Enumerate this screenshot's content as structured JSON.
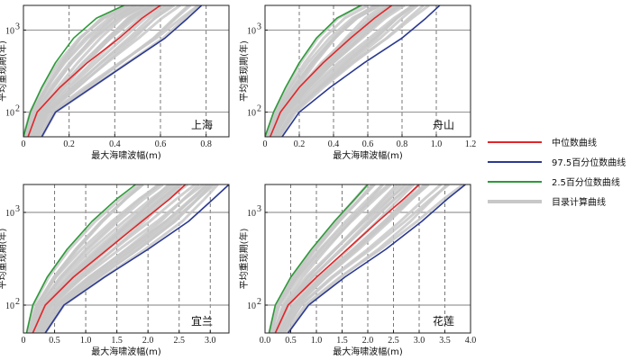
{
  "legend": {
    "items": [
      {
        "label": "中位数曲线",
        "color": "#e0262a"
      },
      {
        "label": "97.5百分位数曲线",
        "color": "#2b3990"
      },
      {
        "label": "2.5百分位数曲线",
        "color": "#2e9a3a"
      },
      {
        "label": "目录计算曲线",
        "color": "#c8c8c8"
      }
    ]
  },
  "chart_data": [
    {
      "type": "line",
      "place_label": "上海",
      "xlabel": "最大海啸波幅(m)",
      "ylabel": "平均重现期(年)",
      "y_scale": "log",
      "xlim": [
        0,
        0.9
      ],
      "ylim": [
        50,
        2000
      ],
      "x_ticks": [
        0,
        0.2,
        0.4,
        0.6,
        0.8
      ],
      "x_tick_labels": [
        "0",
        "0.2",
        "0.4",
        "0.6",
        "0.8"
      ],
      "y_ticks": [
        100,
        1000
      ],
      "y_tick_labels": [
        "10²",
        "10³"
      ],
      "grid": "dashed vertical, solid horizontal",
      "series": [
        {
          "name": "2.5百分位数曲线",
          "color": "#2e9a3a",
          "x": [
            0.0,
            0.03,
            0.08,
            0.14,
            0.22,
            0.32,
            0.44
          ],
          "y": [
            50,
            100,
            200,
            400,
            800,
            1400,
            2000
          ]
        },
        {
          "name": "中位数曲线",
          "color": "#e0262a",
          "x": [
            0.02,
            0.06,
            0.16,
            0.28,
            0.42,
            0.52,
            0.6
          ],
          "y": [
            50,
            100,
            200,
            400,
            800,
            1400,
            2000
          ]
        },
        {
          "name": "97.5百分位数曲线",
          "color": "#2b3990",
          "x": [
            0.08,
            0.14,
            0.3,
            0.46,
            0.62,
            0.72,
            0.78
          ],
          "y": [
            50,
            100,
            200,
            400,
            800,
            1400,
            2000
          ]
        }
      ]
    },
    {
      "type": "line",
      "place_label": "舟山",
      "xlabel": "最大海啸波幅(m)",
      "ylabel": "平均重现期(年)",
      "y_scale": "log",
      "xlim": [
        0,
        1.2
      ],
      "ylim": [
        50,
        2000
      ],
      "x_ticks": [
        0,
        0.2,
        0.4,
        0.6,
        0.8,
        1.0,
        1.2
      ],
      "x_tick_labels": [
        "0",
        "0.2",
        "0.4",
        "0.6",
        "0.8",
        "1.0",
        "1.2"
      ],
      "y_ticks": [
        100,
        1000
      ],
      "y_tick_labels": [
        "10²",
        "10³"
      ],
      "grid": "dashed vertical, solid horizontal",
      "series": [
        {
          "name": "2.5百分位数曲线",
          "color": "#2e9a3a",
          "x": [
            0.0,
            0.05,
            0.12,
            0.2,
            0.3,
            0.42,
            0.56
          ],
          "y": [
            50,
            100,
            200,
            400,
            800,
            1400,
            2000
          ]
        },
        {
          "name": "中位数曲线",
          "color": "#e0262a",
          "x": [
            0.03,
            0.09,
            0.2,
            0.34,
            0.5,
            0.64,
            0.74
          ],
          "y": [
            50,
            100,
            200,
            400,
            800,
            1400,
            2000
          ]
        },
        {
          "name": "97.5百分位数曲线",
          "color": "#2b3990",
          "x": [
            0.1,
            0.2,
            0.38,
            0.58,
            0.8,
            0.94,
            1.02
          ],
          "y": [
            50,
            100,
            200,
            400,
            800,
            1400,
            2000
          ]
        }
      ]
    },
    {
      "type": "line",
      "place_label": "宜兰",
      "xlabel": "最大海啸波幅(m)",
      "ylabel": "平均重现期(年)",
      "y_scale": "log",
      "xlim": [
        0,
        3.3
      ],
      "ylim": [
        50,
        2000
      ],
      "x_ticks": [
        0,
        0.5,
        1.0,
        1.5,
        2.0,
        2.5,
        3.0
      ],
      "x_tick_labels": [
        "0",
        "0.5",
        "1.0",
        "1.5",
        "2.0",
        "2.5",
        "3.0"
      ],
      "y_ticks": [
        100,
        1000
      ],
      "y_tick_labels": [
        "10²",
        "10³"
      ],
      "grid": "dashed vertical, solid horizontal",
      "series": [
        {
          "name": "2.5百分位数曲线",
          "color": "#2e9a3a",
          "x": [
            0.05,
            0.15,
            0.38,
            0.7,
            1.1,
            1.5,
            1.8
          ],
          "y": [
            50,
            100,
            200,
            400,
            800,
            1400,
            2000
          ]
        },
        {
          "name": "中位数曲线",
          "color": "#e0262a",
          "x": [
            0.15,
            0.35,
            0.8,
            1.35,
            1.9,
            2.35,
            2.6
          ],
          "y": [
            50,
            100,
            200,
            400,
            800,
            1400,
            2000
          ]
        },
        {
          "name": "97.5百分位数曲线",
          "color": "#2b3990",
          "x": [
            0.35,
            0.65,
            1.3,
            2.0,
            2.65,
            3.05,
            3.3
          ],
          "y": [
            50,
            100,
            200,
            400,
            800,
            1400,
            2000
          ]
        }
      ]
    },
    {
      "type": "line",
      "place_label": "花莲",
      "xlabel": "最大海啸波幅(m)",
      "ylabel": "平均重现期(年)",
      "y_scale": "log",
      "xlim": [
        0,
        4.0
      ],
      "ylim": [
        50,
        2000
      ],
      "x_ticks": [
        0,
        0.5,
        1.0,
        1.5,
        2.0,
        2.5,
        3.0,
        3.5,
        4.0
      ],
      "x_tick_labels": [
        "0.0",
        "0.5",
        "1.0",
        "1.5",
        "2.0",
        "2.5",
        "3.0",
        "3.5",
        "4.0"
      ],
      "y_ticks": [
        100,
        1000
      ],
      "y_tick_labels": [
        "10²",
        "10³"
      ],
      "grid": "dashed vertical, solid horizontal",
      "series": [
        {
          "name": "2.5百分位数曲线",
          "color": "#2e9a3a",
          "x": [
            0.08,
            0.2,
            0.5,
            0.9,
            1.35,
            1.75,
            2.0
          ],
          "y": [
            50,
            100,
            200,
            400,
            800,
            1400,
            2000
          ]
        },
        {
          "name": "中位数曲线",
          "color": "#e0262a",
          "x": [
            0.2,
            0.45,
            1.0,
            1.6,
            2.2,
            2.7,
            3.0
          ],
          "y": [
            50,
            100,
            200,
            400,
            800,
            1400,
            2000
          ]
        },
        {
          "name": "97.5百分位数曲线",
          "color": "#2b3990",
          "x": [
            0.45,
            0.85,
            1.55,
            2.35,
            3.05,
            3.55,
            3.9
          ],
          "y": [
            50,
            100,
            200,
            400,
            800,
            1400,
            2000
          ]
        }
      ]
    }
  ]
}
